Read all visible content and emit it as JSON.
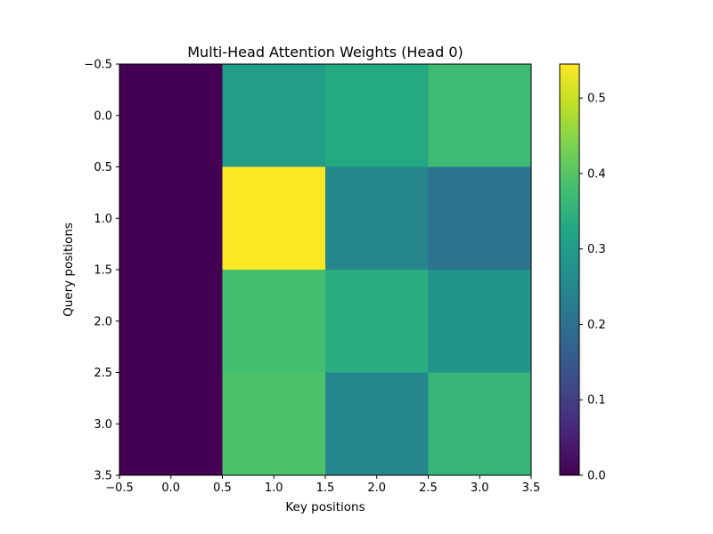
{
  "chart_data": {
    "type": "heatmap",
    "title": "Multi-Head Attention Weights (Head 0)",
    "xlabel": "Key positions",
    "ylabel": "Query positions",
    "xlim": [
      -0.5,
      3.5
    ],
    "ylim": [
      3.5,
      -0.5
    ],
    "x_ticks": [
      "−0.5",
      "0.0",
      "0.5",
      "1.0",
      "1.5",
      "2.0",
      "2.5",
      "3.0",
      "3.5"
    ],
    "y_ticks": [
      "−0.5",
      "0.0",
      "0.5",
      "1.0",
      "1.5",
      "2.0",
      "2.5",
      "3.0",
      "3.5"
    ],
    "colormap": "viridis",
    "vmin": 0.0,
    "vmax": 0.545,
    "colorbar_ticks": [
      "0.0",
      "0.1",
      "0.2",
      "0.3",
      "0.4",
      "0.5"
    ],
    "values": [
      [
        0.0,
        0.3,
        0.33,
        0.37
      ],
      [
        0.0,
        0.545,
        0.25,
        0.21
      ],
      [
        0.0,
        0.38,
        0.34,
        0.28
      ],
      [
        0.0,
        0.39,
        0.25,
        0.36
      ]
    ],
    "grid": false
  }
}
